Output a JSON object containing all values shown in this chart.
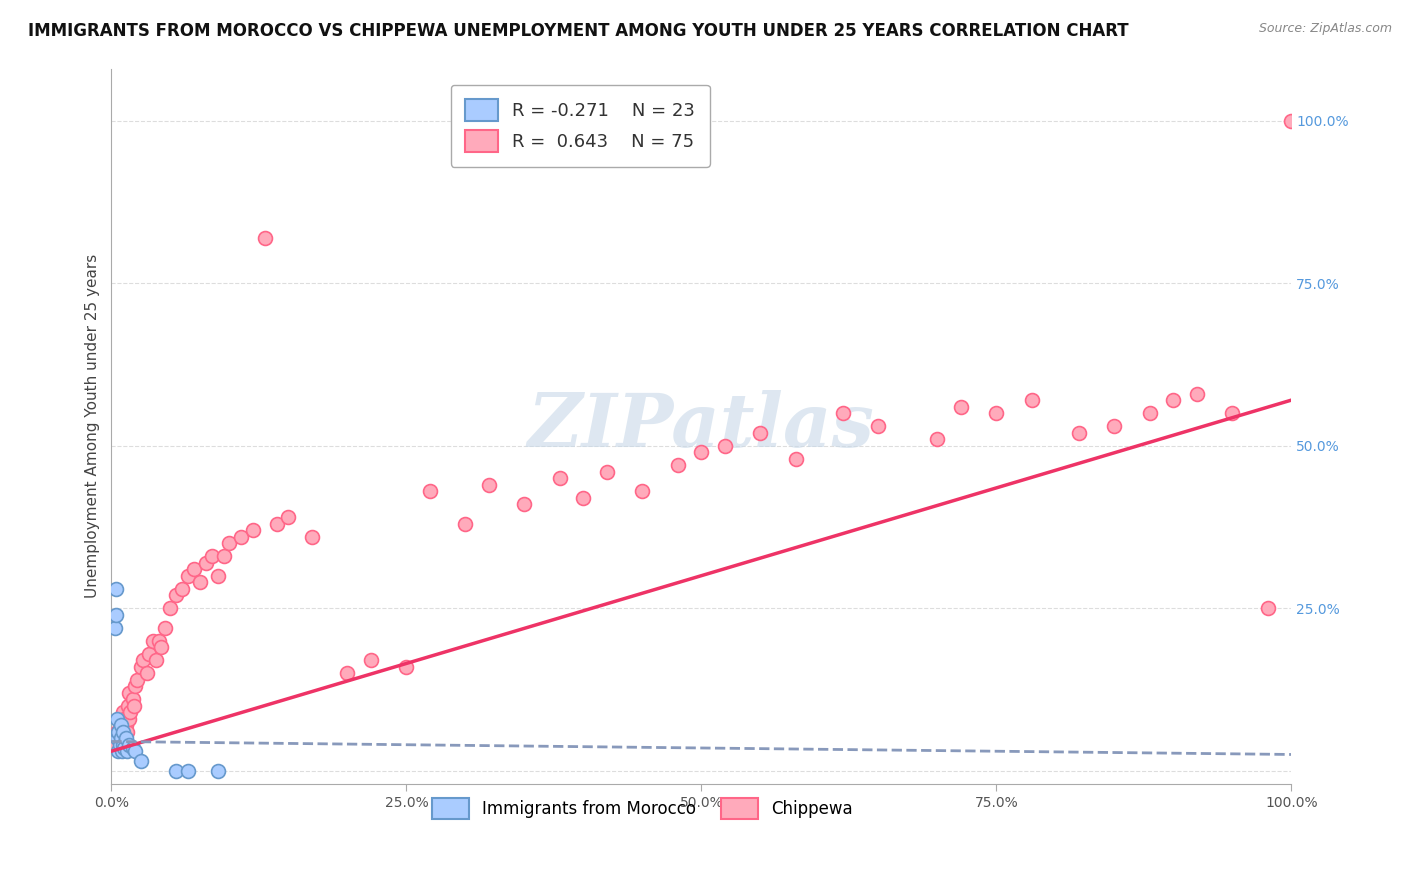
{
  "title": "IMMIGRANTS FROM MOROCCO VS CHIPPEWA UNEMPLOYMENT AMONG YOUTH UNDER 25 YEARS CORRELATION CHART",
  "source": "Source: ZipAtlas.com",
  "ylabel": "Unemployment Among Youth under 25 years",
  "xlim": [
    0,
    1.0
  ],
  "ylim": [
    -0.02,
    1.08
  ],
  "xticks": [
    0.0,
    0.25,
    0.5,
    0.75,
    1.0
  ],
  "xtick_labels": [
    "0.0%",
    "25.0%",
    "50.0%",
    "75.0%",
    "100.0%"
  ],
  "yticks_right": [
    0.25,
    0.5,
    0.75,
    1.0
  ],
  "ytick_labels_right": [
    "25.0%",
    "50.0%",
    "75.0%",
    "100.0%"
  ],
  "grid_yticks": [
    0.0,
    0.25,
    0.5,
    0.75,
    1.0
  ],
  "legend_blue_r": "R = -0.271",
  "legend_blue_n": "N = 23",
  "legend_pink_r": "R =  0.643",
  "legend_pink_n": "N = 75",
  "blue_fill": "#AACCFF",
  "pink_fill": "#FFAABB",
  "blue_edge": "#6699CC",
  "pink_edge": "#FF6688",
  "pink_line_color": "#EE3366",
  "blue_line_color": "#8899BB",
  "background_color": "#FFFFFF",
  "watermark_color": "#C8D8E8",
  "grid_color": "#DDDDDD",
  "title_fontsize": 12,
  "axis_label_fontsize": 11,
  "tick_fontsize": 10,
  "marker_size": 100,
  "marker_linewidth": 1.2,
  "pink_trend_x0": 0.0,
  "pink_trend_y0": 0.03,
  "pink_trend_x1": 1.0,
  "pink_trend_y1": 0.57,
  "blue_trend_x0": 0.0,
  "blue_trend_y0": 0.045,
  "blue_trend_x1": 1.0,
  "blue_trend_y1": 0.025,
  "blue_x": [
    0.003,
    0.004,
    0.004,
    0.005,
    0.005,
    0.006,
    0.006,
    0.007,
    0.008,
    0.008,
    0.009,
    0.01,
    0.01,
    0.011,
    0.012,
    0.013,
    0.015,
    0.018,
    0.02,
    0.025,
    0.055,
    0.065,
    0.09
  ],
  "blue_y": [
    0.22,
    0.24,
    0.28,
    0.05,
    0.08,
    0.03,
    0.06,
    0.04,
    0.05,
    0.07,
    0.03,
    0.04,
    0.06,
    0.035,
    0.05,
    0.03,
    0.04,
    0.035,
    0.03,
    0.015,
    0.0,
    0.0,
    0.0
  ],
  "pink_x": [
    0.003,
    0.005,
    0.006,
    0.007,
    0.008,
    0.009,
    0.01,
    0.01,
    0.011,
    0.012,
    0.013,
    0.014,
    0.015,
    0.015,
    0.016,
    0.018,
    0.019,
    0.02,
    0.022,
    0.025,
    0.027,
    0.03,
    0.032,
    0.035,
    0.038,
    0.04,
    0.042,
    0.045,
    0.05,
    0.055,
    0.06,
    0.065,
    0.07,
    0.075,
    0.08,
    0.085,
    0.09,
    0.095,
    0.1,
    0.11,
    0.12,
    0.13,
    0.14,
    0.15,
    0.17,
    0.2,
    0.22,
    0.25,
    0.27,
    0.3,
    0.32,
    0.35,
    0.38,
    0.4,
    0.42,
    0.45,
    0.48,
    0.5,
    0.52,
    0.55,
    0.58,
    0.62,
    0.65,
    0.7,
    0.72,
    0.75,
    0.78,
    0.82,
    0.85,
    0.88,
    0.9,
    0.92,
    0.95,
    0.98,
    1.0
  ],
  "pink_y": [
    0.04,
    0.06,
    0.08,
    0.05,
    0.07,
    0.04,
    0.06,
    0.09,
    0.08,
    0.07,
    0.06,
    0.1,
    0.08,
    0.12,
    0.09,
    0.11,
    0.1,
    0.13,
    0.14,
    0.16,
    0.17,
    0.15,
    0.18,
    0.2,
    0.17,
    0.2,
    0.19,
    0.22,
    0.25,
    0.27,
    0.28,
    0.3,
    0.31,
    0.29,
    0.32,
    0.33,
    0.3,
    0.33,
    0.35,
    0.36,
    0.37,
    0.82,
    0.38,
    0.39,
    0.36,
    0.15,
    0.17,
    0.16,
    0.43,
    0.38,
    0.44,
    0.41,
    0.45,
    0.42,
    0.46,
    0.43,
    0.47,
    0.49,
    0.5,
    0.52,
    0.48,
    0.55,
    0.53,
    0.51,
    0.56,
    0.55,
    0.57,
    0.52,
    0.53,
    0.55,
    0.57,
    0.58,
    0.55,
    0.25,
    1.0
  ]
}
